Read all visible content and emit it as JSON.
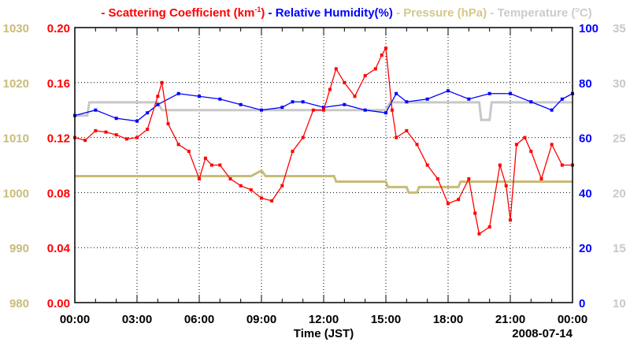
{
  "chart_data": {
    "type": "line",
    "title_parts": [
      {
        "text": "- Scattering Coefficient (km",
        "color": "#ff0000"
      },
      {
        "text": "-1",
        "color": "#ff0000",
        "sup": true
      },
      {
        "text": ") ",
        "color": "#ff0000"
      },
      {
        "text": "- Relative Humidity(%) ",
        "color": "#0000ff"
      },
      {
        "text": "- Pressure (hPa) ",
        "color": "#d4c888"
      },
      {
        "text": "- Temperature (",
        "color": "#cccccc"
      },
      {
        "text": "o",
        "color": "#cccccc",
        "sup": true
      },
      {
        "text": "C)",
        "color": "#cccccc"
      }
    ],
    "xlabel": "Time (JST)",
    "date": "2008-07-14",
    "xlim": [
      0,
      24
    ],
    "x_ticks": [
      "00:00",
      "03:00",
      "06:00",
      "09:00",
      "12:00",
      "15:00",
      "18:00",
      "21:00",
      "00:00"
    ],
    "axes": [
      {
        "name": "Scattering Coefficient",
        "side": "left-inner",
        "color": "#ff0000",
        "range": [
          0,
          0.2
        ],
        "ticks": [
          "0.00",
          "0.04",
          "0.08",
          "0.12",
          "0.16",
          "0.20"
        ]
      },
      {
        "name": "Pressure",
        "side": "left-outer",
        "color": "#c8bc78",
        "range": [
          980,
          1030
        ],
        "ticks": [
          "980",
          "990",
          "1000",
          "1010",
          "1020",
          "1030"
        ]
      },
      {
        "name": "Relative Humidity",
        "side": "right-inner",
        "color": "#0000ff",
        "range": [
          0,
          100
        ],
        "ticks": [
          "0",
          "20",
          "40",
          "60",
          "80",
          "100"
        ]
      },
      {
        "name": "Temperature",
        "side": "right-outer",
        "color": "#c8c8c8",
        "range": [
          10,
          35
        ],
        "ticks": [
          "10",
          "15",
          "20",
          "25",
          "30",
          "35"
        ]
      }
    ],
    "series": [
      {
        "name": "Temperature",
        "axis": 3,
        "color": "#c8c8c8",
        "x": [
          0,
          0.6,
          0.7,
          4,
          4.2,
          15,
          15.2,
          19.5,
          19.6,
          20,
          20.1,
          24
        ],
        "y": [
          27,
          27,
          28.2,
          28.2,
          27.5,
          27.5,
          28.2,
          28.2,
          26.6,
          26.6,
          28.2,
          28.2
        ]
      },
      {
        "name": "Pressure",
        "axis": 1,
        "color": "#c8bc78",
        "x": [
          0,
          8.5,
          9,
          9.2,
          12.5,
          12.6,
          15,
          15.1,
          16,
          16.1,
          16.5,
          16.6,
          18.5,
          18.6,
          24
        ],
        "y": [
          1003,
          1003,
          1004,
          1003,
          1003,
          1002,
          1002,
          1001,
          1001,
          1000,
          1000,
          1001,
          1001,
          1002,
          1002
        ]
      },
      {
        "name": "Relative Humidity",
        "axis": 2,
        "color": "#0000ff",
        "x": [
          0,
          1,
          2,
          3,
          3.5,
          4,
          5,
          6,
          7,
          8,
          9,
          10,
          10.5,
          11,
          12,
          13,
          14,
          15,
          15.5,
          16,
          17,
          18,
          19,
          20,
          21,
          22,
          23,
          23.5,
          24
        ],
        "y": [
          68,
          70,
          67,
          66,
          69,
          72,
          76,
          75,
          74,
          72,
          70,
          71,
          73,
          73,
          71,
          72,
          70,
          69,
          76,
          73,
          74,
          77,
          74,
          76,
          76,
          73,
          70,
          74,
          76
        ]
      },
      {
        "name": "Scattering Coefficient",
        "axis": 0,
        "color": "#ff0000",
        "x": [
          0,
          0.5,
          1,
          1.5,
          2,
          2.5,
          3,
          3.5,
          4,
          4.2,
          4.5,
          5,
          5.5,
          6,
          6.3,
          6.6,
          7,
          7.5,
          8,
          8.5,
          9,
          9.5,
          10,
          10.5,
          11,
          11.5,
          12,
          12.3,
          12.6,
          13,
          13.5,
          14,
          14.5,
          14.8,
          15,
          15.3,
          15.5,
          16,
          16.5,
          17,
          17.5,
          18,
          18.5,
          19,
          19.3,
          19.5,
          20,
          20.5,
          20.8,
          21,
          21.3,
          21.7,
          22,
          22.5,
          23,
          23.5,
          24
        ],
        "y": [
          0.12,
          0.118,
          0.125,
          0.124,
          0.122,
          0.119,
          0.12,
          0.126,
          0.15,
          0.16,
          0.13,
          0.115,
          0.11,
          0.09,
          0.105,
          0.1,
          0.1,
          0.09,
          0.085,
          0.082,
          0.076,
          0.074,
          0.085,
          0.11,
          0.12,
          0.14,
          0.14,
          0.155,
          0.17,
          0.16,
          0.15,
          0.165,
          0.17,
          0.18,
          0.185,
          0.14,
          0.12,
          0.125,
          0.115,
          0.1,
          0.09,
          0.072,
          0.075,
          0.09,
          0.065,
          0.05,
          0.055,
          0.1,
          0.085,
          0.06,
          0.115,
          0.12,
          0.11,
          0.09,
          0.115,
          0.1,
          0.1
        ]
      }
    ]
  }
}
